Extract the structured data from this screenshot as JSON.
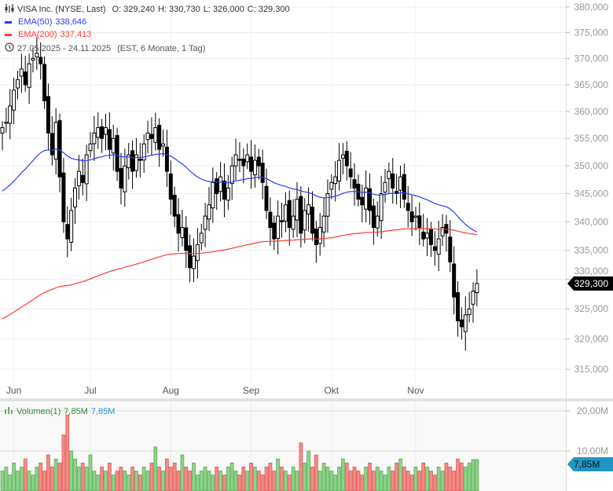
{
  "header": {
    "title": "VISA Inc. (NYSE, Last)",
    "open": "O: 329,240",
    "high": "H: 330,730",
    "low": "L: 326,000",
    "close": "C: 329,300",
    "ema50_label": "EMA(50)",
    "ema50_value": "338,646",
    "ema200_label": "EMA(200)",
    "ema200_value": "337,413",
    "range": "27.05.2025 - 24.11.2025",
    "range_info": "(EST, 6 Monate, 1 Tag)"
  },
  "volume": {
    "label": "Volumen(1)",
    "value1": "7,85M",
    "value2": "7,85M",
    "current_label": "7,85M",
    "axis": [
      "20,00M",
      "10,00M"
    ]
  },
  "price_axis": [
    "380,000",
    "375,000",
    "370,000",
    "365,000",
    "360,000",
    "355,000",
    "350,000",
    "345,000",
    "340,000",
    "335,000",
    "330,000",
    "325,000",
    "320,000",
    "315,000"
  ],
  "current_price": "329,300",
  "months": [
    "Jun",
    "Jul",
    "Aug",
    "Sep",
    "Okt",
    "Nov"
  ],
  "colors": {
    "ema50": "#2a3cff",
    "ema200": "#ff3b2f",
    "up_vol": "#8fd18a",
    "down_vol": "#f38a85",
    "badge": "#2196c4"
  },
  "chart_data": {
    "type": "candlestick",
    "scale": "log",
    "ylim": [
      312,
      382
    ],
    "closes": [
      357,
      358,
      361,
      364,
      366,
      368,
      365,
      369,
      370,
      371,
      369,
      362,
      356,
      352,
      358,
      348,
      340,
      337,
      342,
      346,
      349,
      347,
      352,
      354,
      356,
      357,
      355,
      357,
      353,
      355,
      349,
      346,
      350,
      352,
      349,
      352,
      351,
      354,
      356,
      355,
      357,
      353,
      354,
      349,
      344,
      341,
      338,
      339,
      335,
      332,
      334,
      336,
      338,
      341,
      343,
      347,
      345,
      348,
      344,
      346,
      350,
      352,
      351,
      350,
      352,
      349,
      351,
      350,
      347,
      342,
      339,
      337,
      341,
      340,
      343,
      339,
      341,
      344,
      338,
      342,
      343,
      338,
      336,
      339,
      341,
      345,
      347,
      348,
      351,
      352,
      350,
      348,
      346,
      344,
      343,
      346,
      342,
      339,
      341,
      345,
      347,
      349,
      346,
      345,
      348,
      344,
      342,
      340,
      341,
      339,
      337,
      338,
      336,
      335,
      337,
      339,
      338,
      333,
      327,
      323,
      322,
      324,
      325,
      328,
      329.3
    ],
    "volumes_m": [
      5,
      6,
      4,
      7,
      5,
      6,
      8,
      5,
      4,
      6,
      7,
      5,
      9,
      6,
      8,
      7,
      14,
      19,
      10,
      8,
      6,
      7,
      6,
      9,
      5,
      4,
      6,
      5,
      7,
      4,
      5,
      6,
      5,
      4,
      6,
      5,
      4,
      6,
      5,
      7,
      11,
      6,
      5,
      8,
      6,
      7,
      5,
      9,
      6,
      5,
      7,
      4,
      5,
      6,
      5,
      4,
      6,
      5,
      4,
      6,
      7,
      5,
      4,
      6,
      5,
      7,
      6,
      5,
      4,
      6,
      7,
      5,
      8,
      6,
      5,
      4,
      6,
      5,
      12,
      7,
      10,
      6,
      9,
      5,
      7,
      6,
      5,
      4,
      6,
      8,
      7,
      5,
      6,
      5,
      4,
      6,
      7,
      5,
      6,
      5,
      4,
      6,
      5,
      7,
      8,
      6,
      5,
      4,
      6,
      5,
      7,
      6,
      5,
      4,
      6,
      5,
      7,
      6,
      5,
      8,
      7,
      6,
      7,
      7.85,
      7.85
    ],
    "ema50_seed": 345,
    "ema200_seed": 323
  }
}
